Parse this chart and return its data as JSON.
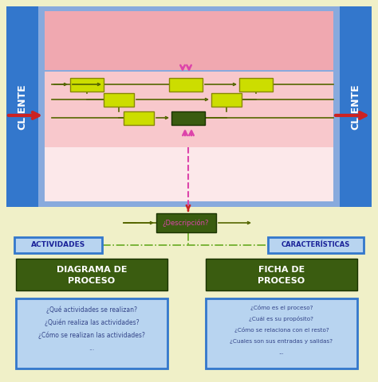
{
  "bg_color": "#f0f0c8",
  "blue_bar_color": "#3377cc",
  "light_blue_bg": "#88aadd",
  "pink_top": "#f0a8b0",
  "pink_mid": "#f8c8cc",
  "pink_bottom": "#fce8ea",
  "yellow_green": "#ccdd00",
  "dark_green": "#3a5c10",
  "olive": "#556600",
  "arrow_red": "#cc2222",
  "arrow_pink": "#dd44aa",
  "dashed_green": "#66aa22",
  "light_blue_box": "#b8d4f0",
  "blue_border": "#3377cc",
  "cliente_text": "CLIENTE",
  "desc_text": "¿Descripción?",
  "actividades_text": "ACTIVIDADES",
  "caracteristicas_text": "CARACTERÍSTICAS",
  "diagrama_line1": "DIAGRAMA DE",
  "diagrama_line2": "PROCESO",
  "ficha_line1": "FICHA DE",
  "ficha_line2": "PROCESO",
  "left_box_lines": [
    "¿Qué actividades se realizan?",
    "¿Quién realiza las actividades?",
    "¿Cómo se realizan las actividades?",
    "..."
  ],
  "right_box_lines": [
    "¿Cómo es el proceso?",
    "¿Cuál es su propósito?",
    "¿Cómo se relaciona con el resto?",
    "¿Cuales son sus entradas y salidas?",
    "..."
  ]
}
